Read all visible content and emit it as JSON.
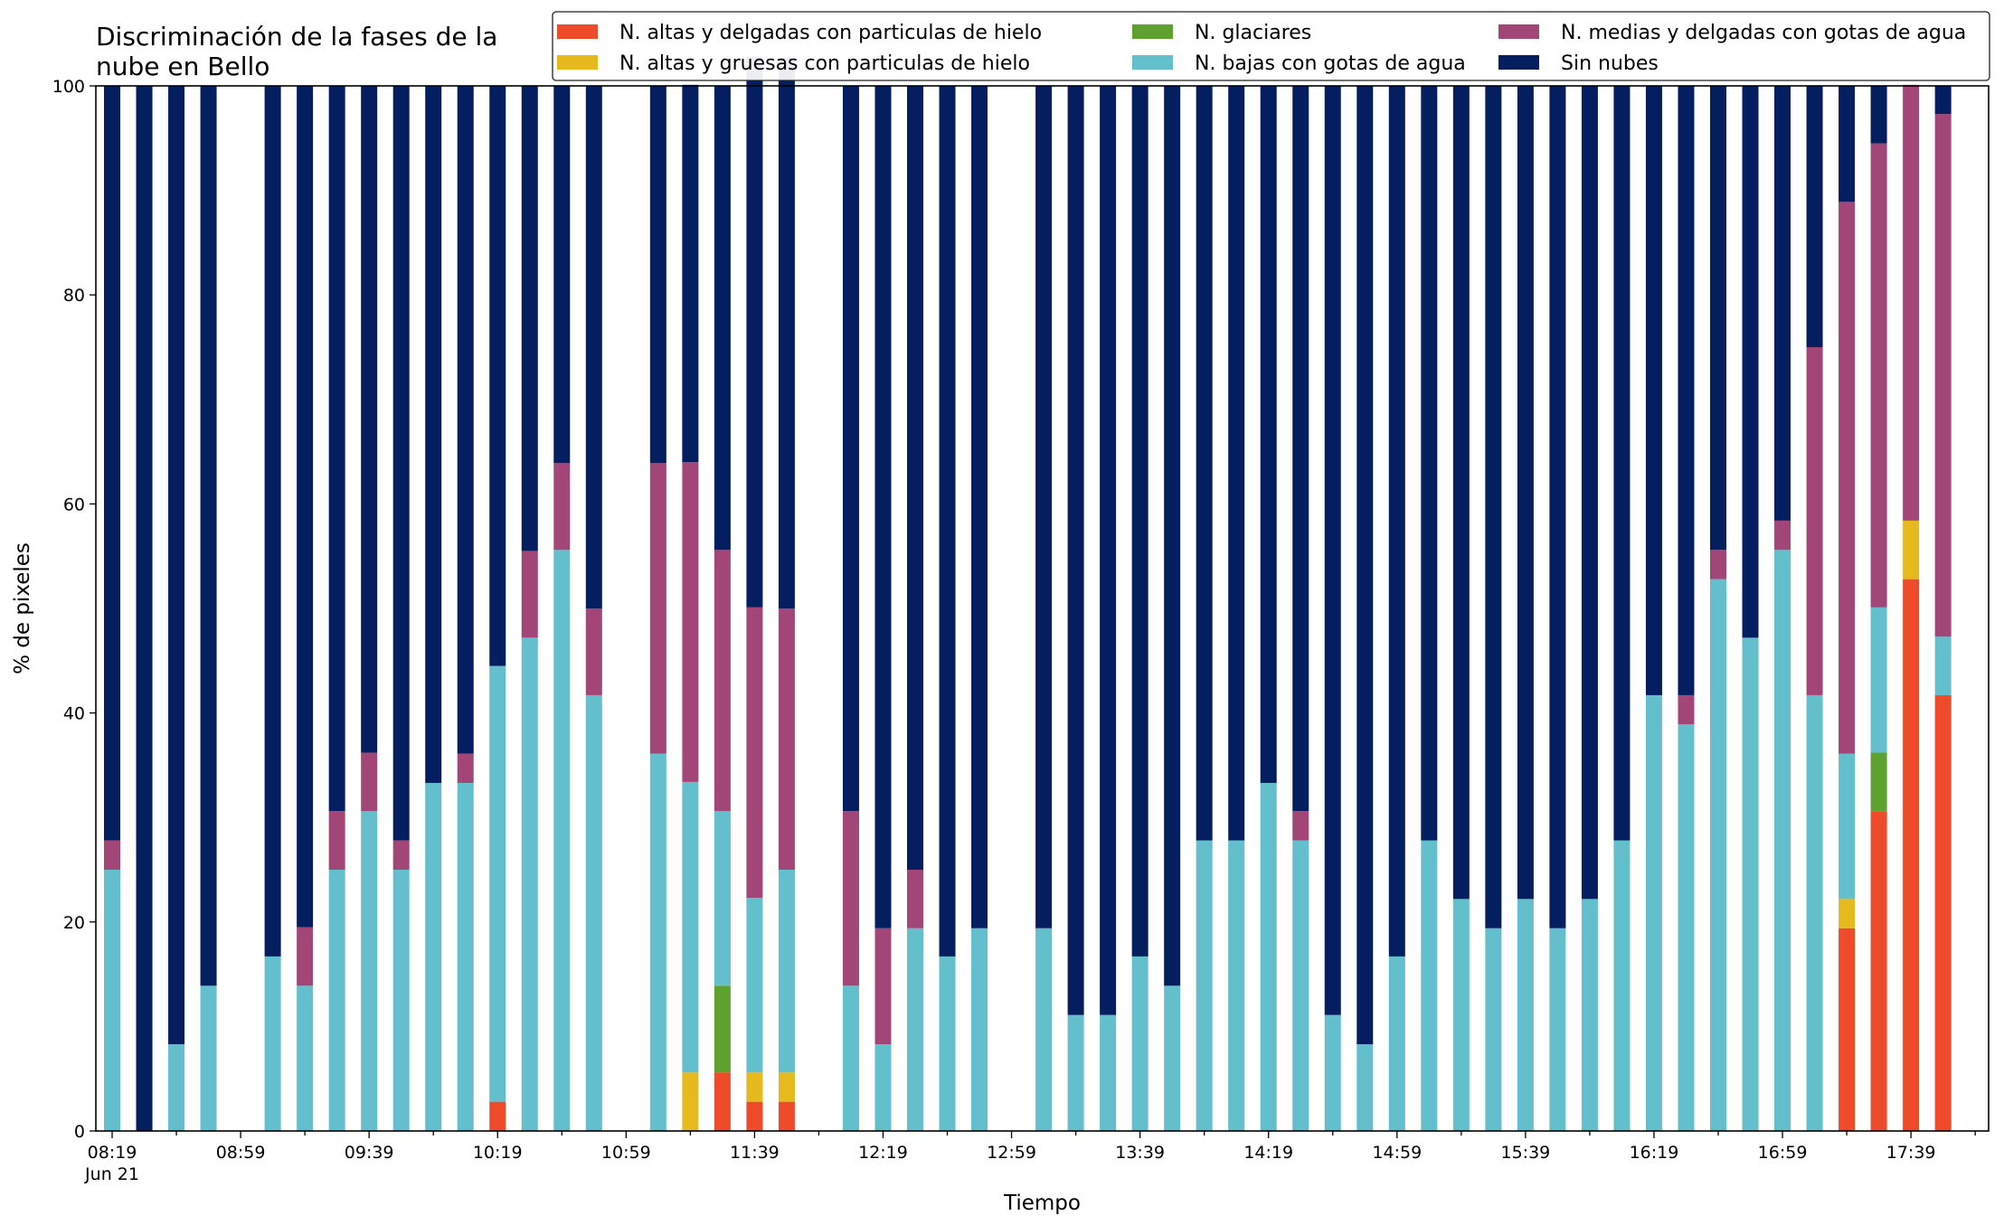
{
  "chart_data": {
    "type": "bar",
    "stacked": true,
    "title_lines": [
      "Discriminación de la fases de la",
      "nube en Bello"
    ],
    "xlabel": "Tiempo",
    "ylabel": "% de pixeles",
    "ylim": [
      0,
      100
    ],
    "yticks": [
      0,
      20,
      40,
      60,
      80,
      100
    ],
    "x_start": "08:19",
    "x_step_minutes": 10,
    "x": [
      "08:19",
      "08:29",
      "08:39",
      "08:49",
      "08:59",
      "09:09",
      "09:19",
      "09:29",
      "09:39",
      "09:49",
      "09:59",
      "10:09",
      "10:19",
      "10:29",
      "10:39",
      "10:49",
      "10:59",
      "11:09",
      "11:19",
      "11:29",
      "11:39",
      "11:49",
      "11:59",
      "12:09",
      "12:19",
      "12:29",
      "12:39",
      "12:49",
      "12:59",
      "13:09",
      "13:19",
      "13:29",
      "13:39",
      "13:49",
      "13:59",
      "14:09",
      "14:19",
      "14:29",
      "14:39",
      "14:49",
      "14:59",
      "15:09",
      "15:19",
      "15:29",
      "15:39",
      "15:49",
      "15:59",
      "16:09",
      "16:19",
      "16:29",
      "16:39",
      "16:49",
      "16:59",
      "17:09",
      "17:19",
      "17:29",
      "17:39",
      "17:49"
    ],
    "xtick_labels": [
      "08:19",
      "08:59",
      "09:39",
      "10:19",
      "10:59",
      "11:39",
      "12:19",
      "12:59",
      "13:39",
      "14:19",
      "14:59",
      "15:39",
      "16:19",
      "16:59",
      "17:39"
    ],
    "xtick_sublabel": "Jun 21",
    "grid": false,
    "legend_position": "top-right",
    "legend_columns": 3,
    "series": [
      {
        "name": "N. altas y delgadas con particulas de hielo",
        "color": "#ee4b2b",
        "values": [
          0,
          0,
          0,
          0,
          0,
          0,
          0,
          0,
          0,
          0,
          0,
          0,
          2.8,
          0,
          0,
          0,
          0,
          0,
          0,
          5.6,
          2.8,
          2.8,
          0,
          0,
          0,
          0,
          0,
          0,
          0,
          0,
          0,
          0,
          0,
          0,
          0,
          0,
          0,
          0,
          0,
          0,
          0,
          0,
          0,
          0,
          0,
          0,
          0,
          0,
          0,
          0,
          0,
          0,
          0,
          0,
          19.4,
          30.6,
          52.8,
          41.7
        ]
      },
      {
        "name": "N. altas y gruesas con particulas de hielo",
        "color": "#e6b91e",
        "values": [
          0,
          0,
          0,
          0,
          0,
          0,
          0,
          0,
          0,
          0,
          0,
          0,
          0,
          0,
          0,
          0,
          0,
          0,
          5.6,
          0,
          2.8,
          2.8,
          0,
          0,
          0,
          0,
          0,
          0,
          0,
          0,
          0,
          0,
          0,
          0,
          0,
          0,
          0,
          0,
          0,
          0,
          0,
          0,
          0,
          0,
          0,
          0,
          0,
          0,
          0,
          0,
          0,
          0,
          0,
          0,
          2.8,
          0,
          5.6,
          0
        ]
      },
      {
        "name": "N. glaciares",
        "color": "#5ea12f",
        "values": [
          0,
          0,
          0,
          0,
          0,
          0,
          0,
          0,
          0,
          0,
          0,
          0,
          0,
          0,
          0,
          0,
          0,
          0,
          0,
          8.3,
          0,
          0,
          0,
          0,
          0,
          0,
          0,
          0,
          0,
          0,
          0,
          0,
          0,
          0,
          0,
          0,
          0,
          0,
          0,
          0,
          0,
          0,
          0,
          0,
          0,
          0,
          0,
          0,
          0,
          0,
          0,
          0,
          0,
          0,
          0,
          5.6,
          0,
          0
        ]
      },
      {
        "name": "N. bajas con gotas de agua",
        "color": "#63bfcb",
        "values": [
          25,
          0,
          8.3,
          13.9,
          0,
          16.7,
          13.9,
          25,
          30.6,
          25,
          33.3,
          33.3,
          41.7,
          47.2,
          55.6,
          41.7,
          0,
          36.1,
          27.8,
          16.7,
          16.7,
          19.4,
          0,
          13.9,
          8.3,
          19.4,
          16.7,
          19.4,
          0,
          19.4,
          11.1,
          11.1,
          16.7,
          13.9,
          27.8,
          27.8,
          33.3,
          27.8,
          11.1,
          8.3,
          16.7,
          27.8,
          22.2,
          19.4,
          22.2,
          19.4,
          22.2,
          27.8,
          41.7,
          38.9,
          52.8,
          47.2,
          55.6,
          41.7,
          13.9,
          13.9,
          0,
          5.6
        ]
      },
      {
        "name": "N. medias y delgadas con gotas de agua",
        "color": "#a24678",
        "values": [
          2.8,
          0,
          0,
          0,
          0,
          0,
          5.6,
          5.6,
          5.6,
          2.8,
          0,
          2.8,
          0,
          8.3,
          8.3,
          8.3,
          0,
          27.8,
          30.6,
          25,
          27.8,
          25,
          0,
          16.7,
          11.1,
          5.6,
          0,
          0,
          0,
          0,
          0,
          0,
          0,
          0,
          0,
          0,
          0,
          2.8,
          0,
          0,
          0,
          0,
          0,
          0,
          0,
          0,
          0,
          0,
          0,
          2.8,
          2.8,
          0,
          2.8,
          33.3,
          52.8,
          44.4,
          41.7,
          50
        ]
      },
      {
        "name": "Sin nubes",
        "color": "#041e60",
        "values": [
          72.2,
          100,
          91.7,
          86.1,
          0,
          83.3,
          80.5,
          69.4,
          63.8,
          72.2,
          66.7,
          63.9,
          55.5,
          44.5,
          36.1,
          50,
          0,
          36.1,
          36.1,
          44.4,
          52.7,
          52.7,
          0,
          69.4,
          80.6,
          75,
          83.3,
          80.6,
          0,
          80.6,
          88.9,
          88.9,
          83.3,
          86.1,
          72.2,
          72.2,
          66.7,
          69.4,
          88.9,
          91.7,
          83.3,
          72.2,
          77.8,
          80.6,
          77.8,
          80.6,
          77.8,
          72.2,
          58.3,
          58.3,
          44.4,
          52.8,
          41.6,
          25,
          11.1,
          5.5,
          0,
          2.7
        ]
      }
    ]
  }
}
